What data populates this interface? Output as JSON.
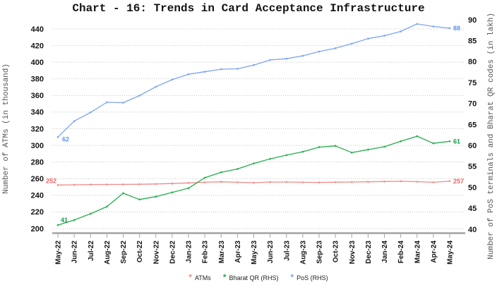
{
  "title": "Chart - 16: Trends in Card Acceptance Infrastructure",
  "chart_data": {
    "type": "line",
    "title": "Chart - 16: Trends in Card Acceptance Infrastructure",
    "categories": [
      "May-22",
      "Jun-22",
      "Jul-22",
      "Aug-22",
      "Sep-22",
      "Oct-22",
      "Nov-22",
      "Dec-22",
      "Jan-23",
      "Feb-23",
      "Mar-23",
      "Apr-23",
      "May-23",
      "Jun-23",
      "Jul-23",
      "Aug-23",
      "Sep-23",
      "Oct-23",
      "Nov-23",
      "Dec-23",
      "Jan-24",
      "Feb-24",
      "Mar-24",
      "Apr-24",
      "May-24"
    ],
    "left_axis": {
      "title": "Number of ATMs (in thousand)",
      "min": 200,
      "max": 440,
      "step": 20,
      "ticks": [
        200,
        220,
        240,
        260,
        280,
        300,
        320,
        340,
        360,
        380,
        400,
        420,
        440
      ]
    },
    "right_axis": {
      "title": "Number of PoS terminals and Bharat QR codes (in lakh)",
      "min": 40,
      "max": 90,
      "step": 5,
      "ticks": [
        40,
        45,
        50,
        55,
        60,
        65,
        70,
        75,
        80,
        85,
        90
      ]
    },
    "grid": "horizontal dotted, left-axis ticks",
    "legend_position": "bottom-center",
    "series": [
      {
        "name": "ATMs",
        "axis": "left",
        "color": "#f08a86",
        "label_color": "#ed6363",
        "start_label": "252",
        "end_label": "257",
        "values": [
          252.3,
          252.6,
          252.9,
          253.0,
          253.1,
          253.3,
          253.6,
          254.1,
          254.9,
          255.6,
          256.2,
          255.6,
          255.1,
          255.9,
          256.0,
          255.6,
          255.5,
          255.7,
          256.0,
          256.2,
          256.6,
          256.9,
          256.4,
          255.6,
          257.0
        ]
      },
      {
        "name": "Bharat QR (RHS)",
        "axis": "right",
        "color": "#26ac4d",
        "label_color": "#0ba04a",
        "start_label": "41",
        "end_label": "61",
        "values": [
          41.0,
          42.2,
          43.7,
          45.4,
          48.6,
          47.1,
          47.8,
          48.8,
          49.8,
          52.3,
          53.6,
          54.4,
          55.7,
          56.8,
          57.7,
          58.5,
          59.6,
          59.9,
          58.3,
          59.0,
          59.7,
          61.0,
          62.2,
          60.5,
          61.0
        ]
      },
      {
        "name": "PoS (RHS)",
        "axis": "right",
        "color": "#7da4f2",
        "label_color": "#5f93ee",
        "start_label": "62",
        "end_label": "88",
        "values": [
          62.0,
          65.8,
          67.9,
          70.3,
          70.2,
          71.9,
          74.0,
          75.7,
          77.0,
          77.6,
          78.2,
          78.3,
          79.2,
          80.4,
          80.7,
          81.4,
          82.4,
          83.2,
          84.3,
          85.5,
          86.2,
          87.2,
          89.0,
          88.4,
          88.0
        ]
      }
    ]
  }
}
